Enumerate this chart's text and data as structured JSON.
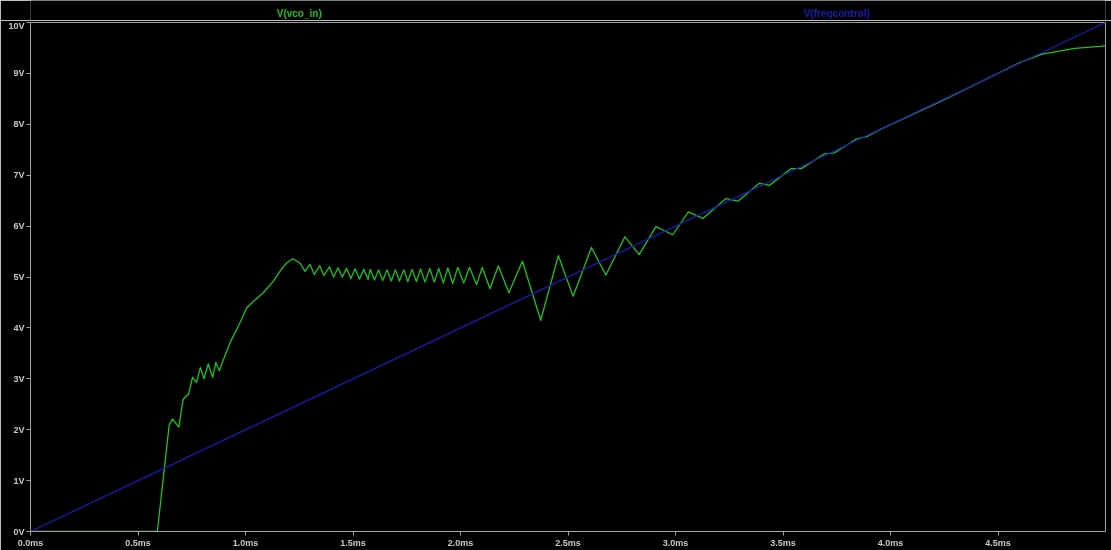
{
  "chart_data": {
    "type": "line",
    "grid": false,
    "xlim": [
      0,
      5
    ],
    "ylim": [
      0,
      10
    ],
    "xticks": [
      {
        "value": 0,
        "label": "0.0ms"
      },
      {
        "value": 0.5,
        "label": "0.5ms"
      },
      {
        "value": 1,
        "label": "1.0ms"
      },
      {
        "value": 1.5,
        "label": "1.5ms"
      },
      {
        "value": 2,
        "label": "2.0ms"
      },
      {
        "value": 2.5,
        "label": "2.5ms"
      },
      {
        "value": 3,
        "label": "3.0ms"
      },
      {
        "value": 3.5,
        "label": "3.5ms"
      },
      {
        "value": 4,
        "label": "4.0ms"
      },
      {
        "value": 4.5,
        "label": "4.5ms"
      }
    ],
    "yticks": [
      {
        "value": 0,
        "label": "0V"
      },
      {
        "value": 1,
        "label": "1V"
      },
      {
        "value": 2,
        "label": "2V"
      },
      {
        "value": 3,
        "label": "3V"
      },
      {
        "value": 4,
        "label": "4V"
      },
      {
        "value": 5,
        "label": "5V"
      },
      {
        "value": 6,
        "label": "6V"
      },
      {
        "value": 7,
        "label": "7V"
      },
      {
        "value": 8,
        "label": "8V"
      },
      {
        "value": 9,
        "label": "9V"
      },
      {
        "value": 10,
        "label": "10V"
      }
    ],
    "series": [
      {
        "name": "V(vco_in)",
        "color": "#1ec31e",
        "x": [
          0,
          0.59,
          0.645,
          0.66,
          0.69,
          0.71,
          0.735,
          0.754,
          0.772,
          0.79,
          0.807,
          0.827,
          0.847,
          0.862,
          0.878,
          0.904,
          0.928,
          0.959,
          0.982,
          1.005,
          1.036,
          1.083,
          1.13,
          1.16,
          1.19,
          1.22,
          1.254,
          1.277,
          1.3,
          1.32,
          1.345,
          1.365,
          1.39,
          1.41,
          1.43,
          1.45,
          1.47,
          1.49,
          1.51,
          1.53,
          1.55,
          1.57,
          1.58,
          1.6,
          1.619,
          1.638,
          1.658,
          1.678,
          1.697,
          1.716,
          1.736,
          1.755,
          1.775,
          1.795,
          1.814,
          1.835,
          1.857,
          1.878,
          1.899,
          1.92,
          1.941,
          1.964,
          1.987,
          2.015,
          2.042,
          2.075,
          2.101,
          2.137,
          2.176,
          2.225,
          2.288,
          2.373,
          2.455,
          2.524,
          2.609,
          2.676,
          2.765,
          2.831,
          2.909,
          2.987,
          3.06,
          3.127,
          3.235,
          3.29,
          3.39,
          3.437,
          3.538,
          3.585,
          3.694,
          3.74,
          3.841,
          3.896,
          3.943,
          4.238,
          4.595,
          4.704,
          4.859,
          4.999
        ],
        "values": [
          0,
          0,
          2.09,
          2.21,
          2.05,
          2.6,
          2.7,
          3.03,
          2.93,
          3.22,
          3.0,
          3.29,
          3.03,
          3.32,
          3.16,
          3.45,
          3.71,
          3.97,
          4.17,
          4.39,
          4.52,
          4.69,
          4.92,
          5.11,
          5.27,
          5.36,
          5.27,
          5.11,
          5.25,
          5.05,
          5.22,
          5.03,
          5.2,
          5.0,
          5.18,
          5.0,
          5.17,
          4.97,
          5.16,
          4.96,
          5.15,
          4.95,
          5.15,
          4.94,
          5.14,
          4.93,
          5.14,
          4.92,
          5.14,
          4.92,
          5.14,
          4.91,
          5.15,
          4.91,
          5.16,
          4.9,
          5.17,
          4.9,
          5.17,
          4.88,
          5.18,
          4.87,
          5.19,
          4.88,
          5.19,
          4.85,
          5.19,
          4.77,
          5.22,
          4.69,
          5.31,
          4.15,
          5.42,
          4.62,
          5.58,
          5.04,
          5.79,
          5.44,
          5.99,
          5.83,
          6.28,
          6.15,
          6.54,
          6.49,
          6.84,
          6.8,
          7.13,
          7.13,
          7.42,
          7.44,
          7.71,
          7.77,
          7.88,
          8.46,
          9.2,
          9.38,
          9.49,
          9.54
        ]
      },
      {
        "name": "V(freqcontrol)",
        "color": "#1a1ab4",
        "x": [
          0,
          5
        ],
        "values": [
          0,
          10
        ]
      }
    ]
  }
}
